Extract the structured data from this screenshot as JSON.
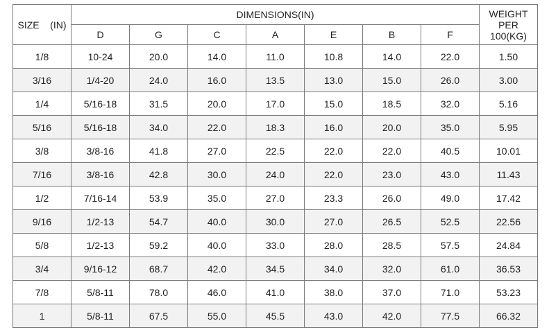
{
  "headers": {
    "size": "SIZE    (IN)",
    "dimensions": "DIMENSIONS(IN)",
    "weight_line1": "WEIGHT",
    "weight_line2": "PER",
    "weight_line3": "100(KG)",
    "columns": [
      "D",
      "G",
      "C",
      "A",
      "E",
      "B",
      "F"
    ]
  },
  "rows": [
    {
      "size": "1/8",
      "d": "10-24",
      "g": "20.0",
      "c": "14.0",
      "a": "11.0",
      "e": "10.8",
      "b": "14.0",
      "f": "22.0",
      "w": "1.50"
    },
    {
      "size": "3/16",
      "d": "1/4-20",
      "g": "24.0",
      "c": "16.0",
      "a": "13.5",
      "e": "13.0",
      "b": "15.0",
      "f": "26.0",
      "w": "3.00"
    },
    {
      "size": "1/4",
      "d": "5/16-18",
      "g": "31.5",
      "c": "20.0",
      "a": "17.0",
      "e": "15.0",
      "b": "18.5",
      "f": "32.0",
      "w": "5.16"
    },
    {
      "size": "5/16",
      "d": "5/16-18",
      "g": "34.0",
      "c": "22.0",
      "a": "18.3",
      "e": "16.0",
      "b": "20.0",
      "f": "35.0",
      "w": "5.95"
    },
    {
      "size": "3/8",
      "d": "3/8-16",
      "g": "41.8",
      "c": "27.0",
      "a": "22.5",
      "e": "22.0",
      "b": "22.0",
      "f": "40.5",
      "w": "10.01"
    },
    {
      "size": "7/16",
      "d": "3/8-16",
      "g": "42.8",
      "c": "30.0",
      "a": "24.0",
      "e": "22.0",
      "b": "23.0",
      "f": "43.0",
      "w": "11.43"
    },
    {
      "size": "1/2",
      "d": "7/16-14",
      "g": "53.9",
      "c": "35.0",
      "a": "27.0",
      "e": "23.3",
      "b": "26.0",
      "f": "49.0",
      "w": "17.42"
    },
    {
      "size": "9/16",
      "d": "1/2-13",
      "g": "54.7",
      "c": "40.0",
      "a": "30.0",
      "e": "27.0",
      "b": "26.5",
      "f": "52.5",
      "w": "22.56"
    },
    {
      "size": "5/8",
      "d": "1/2-13",
      "g": "59.2",
      "c": "40.0",
      "a": "33.0",
      "e": "28.0",
      "b": "28.5",
      "f": "57.5",
      "w": "24.84"
    },
    {
      "size": "3/4",
      "d": "9/16-12",
      "g": "68.7",
      "c": "42.0",
      "a": "34.5",
      "e": "34.0",
      "b": "32.0",
      "f": "61.0",
      "w": "36.53"
    },
    {
      "size": "7/8",
      "d": "5/8-11",
      "g": "78.0",
      "c": "46.0",
      "a": "41.0",
      "e": "38.0",
      "b": "37.0",
      "f": "71.0",
      "w": "53.23"
    },
    {
      "size": "1",
      "d": "5/8-11",
      "g": "67.5",
      "c": "55.0",
      "a": "45.5",
      "e": "43.0",
      "b": "42.0",
      "f": "77.5",
      "w": "66.32"
    }
  ]
}
